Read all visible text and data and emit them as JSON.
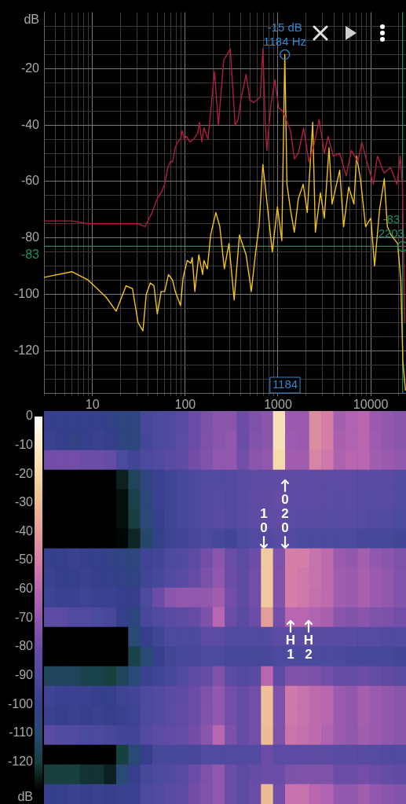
{
  "chart_data": [
    {
      "type": "line",
      "log": "x",
      "grid": true,
      "ylabel": "dB",
      "xlim": [
        3,
        24000
      ],
      "xticks": [
        {
          "value": 3,
          "label": null
        },
        {
          "value": 4,
          "label": null
        },
        {
          "value": 5,
          "label": null
        },
        {
          "value": 6,
          "label": null
        },
        {
          "value": 7,
          "label": null
        },
        {
          "value": 8,
          "label": null
        },
        {
          "value": 9,
          "label": null
        },
        10,
        {
          "value": 20,
          "label": null
        },
        {
          "value": 30,
          "label": null
        },
        {
          "value": 40,
          "label": null
        },
        {
          "value": 50,
          "label": null
        },
        {
          "value": 60,
          "label": null
        },
        {
          "value": 70,
          "label": null
        },
        {
          "value": 80,
          "label": null
        },
        {
          "value": 90,
          "label": null
        },
        100,
        {
          "value": 200,
          "label": null
        },
        {
          "value": 300,
          "label": null
        },
        {
          "value": 400,
          "label": null
        },
        {
          "value": 500,
          "label": null
        },
        {
          "value": 600,
          "label": null
        },
        {
          "value": 700,
          "label": null
        },
        {
          "value": 800,
          "label": null
        },
        {
          "value": 900,
          "label": null
        },
        1000,
        {
          "value": 2000,
          "label": null
        },
        {
          "value": 3000,
          "label": null
        },
        {
          "value": 4000,
          "label": null
        },
        {
          "value": 5000,
          "label": null
        },
        {
          "value": 6000,
          "label": null
        },
        {
          "value": 7000,
          "label": null
        },
        {
          "value": 8000,
          "label": null
        },
        {
          "value": 9000,
          "label": null
        },
        10000,
        {
          "value": 20000,
          "label": null
        }
      ],
      "ylim": [
        -135,
        0
      ],
      "yticks": [
        {
          "value": -5,
          "label": null
        },
        {
          "value": -10,
          "label": null
        },
        {
          "value": -15,
          "label": null
        },
        -20,
        {
          "value": -25,
          "label": null
        },
        {
          "value": -30,
          "label": null
        },
        {
          "value": -35,
          "label": null
        },
        -40,
        {
          "value": -45,
          "label": null
        },
        {
          "value": -50,
          "label": null
        },
        {
          "value": -55,
          "label": null
        },
        -60,
        {
          "value": -65,
          "label": null
        },
        {
          "value": -70,
          "label": null
        },
        {
          "value": -75,
          "label": null
        },
        -80,
        {
          "value": -85,
          "label": null
        },
        {
          "value": -90,
          "label": null
        },
        {
          "value": -95,
          "label": null
        },
        -100,
        {
          "value": -105,
          "label": null
        },
        {
          "value": -110,
          "label": null
        },
        {
          "value": -115,
          "label": null
        },
        -120,
        {
          "value": -125,
          "label": null
        },
        {
          "value": -130,
          "label": null
        }
      ],
      "series": [
        {
          "color": "#b01c40",
          "x": [
            3,
            6,
            9,
            15,
            23,
            31,
            37,
            41,
            44,
            50,
            55,
            60,
            65,
            69,
            73,
            78,
            83,
            89,
            93,
            98,
            103,
            112,
            123,
            136,
            142,
            151,
            159,
            176,
            207,
            228,
            260,
            306,
            345,
            372,
            398,
            453,
            497,
            548,
            645,
            687,
            733,
            759,
            837,
            925,
            1020,
            1125,
            1365,
            1500,
            1660,
            1890,
            2150,
            2450,
            2780,
            3160,
            3470,
            3950,
            4630,
            5440,
            6190,
            7270,
            8000,
            9090,
            10700,
            11800,
            13900,
            16300,
            19200,
            20800,
            21900,
            23300
          ],
          "values": [
            -74,
            -74,
            -75,
            -75,
            -75,
            -75,
            -76,
            -73,
            -71,
            -66,
            -64,
            -61,
            -55,
            -53,
            -53,
            -48,
            -46,
            -45,
            -42,
            -45,
            -44,
            -46,
            -45,
            -43,
            -39,
            -46,
            -41,
            -45,
            -21,
            -40,
            -17,
            -13,
            -40,
            -38,
            -31,
            -22,
            -31,
            -32,
            -30,
            -13,
            -41,
            -49,
            -33,
            -24,
            -34,
            -35,
            -42,
            -52,
            -50,
            -41,
            -53,
            -47,
            -38,
            -50,
            -44,
            -51,
            -50,
            -58,
            -49,
            -53,
            -46,
            -53,
            -61,
            -51,
            -57,
            -55,
            -61,
            -51,
            -61,
            -110
          ]
        },
        {
          "color": "#f2c21a",
          "x": [
            3,
            6,
            9,
            14,
            18,
            23,
            27,
            31,
            35,
            38,
            42,
            46,
            50,
            55,
            60,
            66,
            73,
            78,
            89,
            95,
            105,
            115,
            119,
            127,
            140,
            154,
            159,
            173,
            188,
            214,
            236,
            264,
            296,
            337,
            384,
            453,
            516,
            570,
            624,
            687,
            759,
            868,
            987,
            1100,
            1184,
            1250,
            1365,
            1500,
            1660,
            1870,
            2070,
            2368,
            2530,
            2870,
            3160,
            3552,
            3830,
            4210,
            4630,
            5100,
            5790,
            6590,
            7030,
            7740,
            8800,
            10030,
            11000,
            12450,
            14000,
            15100,
            16600,
            19500,
            21100,
            22200,
            23700
          ],
          "values": [
            -94,
            -92,
            -95,
            -101,
            -106,
            -97,
            -98,
            -110,
            -113,
            -100,
            -96,
            -97,
            -107,
            -99,
            -99,
            -93,
            -95,
            -99,
            -104,
            -94,
            -88,
            -89,
            -87,
            -99,
            -86,
            -93,
            -88,
            -91,
            -79,
            -71,
            -76,
            -91,
            -82,
            -102,
            -79,
            -86,
            -99,
            -86,
            -76,
            -54,
            -67,
            -85,
            -69,
            -81,
            -15,
            -61,
            -70,
            -78,
            -66,
            -61,
            -71,
            -39,
            -78,
            -64,
            -73,
            -48,
            -68,
            -62,
            -56,
            -76,
            -62,
            -68,
            -51,
            -59,
            -76,
            -73,
            -90,
            -70,
            -59,
            -76,
            -79,
            -82,
            -95,
            -124,
            -134
          ]
        }
      ],
      "ref_lines": [
        {
          "axis": "y",
          "value": -83,
          "label": "-83",
          "color": "#1f8f63"
        },
        {
          "axis": "x",
          "value": 22030,
          "color": "#1f8f63"
        }
      ],
      "annotations": [
        {
          "text": "-15 dB\n1184 Hz",
          "x": 1184,
          "y": -15
        },
        "1184",
        {
          "text": "-83\n2203",
          "x": 22030,
          "y": -83
        }
      ]
    },
    {
      "type": "heatmap",
      "tick_labels": false,
      "clim": [
        -130,
        0
      ],
      "cticks": [
        0,
        -10,
        -20,
        -30,
        -40,
        -50,
        -60,
        -70,
        -80,
        -90,
        -100,
        -110,
        -120
      ],
      "clabel": "dB",
      "categories": [
        null,
        null,
        null,
        null,
        null,
        null,
        null,
        null,
        null,
        null,
        null,
        null,
        null,
        null,
        null,
        null,
        null,
        null,
        null,
        null,
        null,
        null,
        null,
        null,
        null,
        null,
        null,
        null,
        null,
        null
      ],
      "y_categories": [
        null,
        null,
        null,
        null,
        null,
        null,
        null,
        null,
        null,
        null,
        null,
        null,
        null,
        null,
        null,
        null,
        null,
        null,
        null,
        null
      ],
      "cells": [
        [
          -100,
          -100,
          -100,
          -100,
          -100,
          -102,
          -105,
          -105,
          -92,
          -90,
          -88,
          -86,
          -80,
          -76,
          -72,
          -72,
          -80,
          -75,
          -72,
          -15,
          -68,
          -68,
          -45,
          -50,
          -65,
          -62,
          -60,
          -68,
          -70,
          -72
        ],
        [
          -98,
          -100,
          -102,
          -100,
          -98,
          -100,
          -104,
          -106,
          -93,
          -90,
          -88,
          -85,
          -80,
          -75,
          -72,
          -70,
          -80,
          -74,
          -72,
          -15,
          -67,
          -68,
          -45,
          -50,
          -64,
          -62,
          -60,
          -67,
          -70,
          -72
        ],
        [
          -78,
          -78,
          -78,
          -80,
          -80,
          -82,
          -90,
          -95,
          -90,
          -88,
          -86,
          -84,
          -78,
          -74,
          -70,
          -70,
          -78,
          -72,
          -70,
          -18,
          -66,
          -66,
          -48,
          -52,
          -63,
          -60,
          -60,
          -66,
          -68,
          -70
        ],
        [
          -130,
          -130,
          -130,
          -130,
          -130,
          -130,
          -125,
          -115,
          -105,
          -98,
          -95,
          -92,
          -90,
          -88,
          -88,
          -88,
          -86,
          -85,
          -85,
          -84,
          -84,
          -85,
          -85,
          -85,
          -85,
          -85,
          -86,
          -86,
          -86,
          -88
        ],
        [
          -130,
          -130,
          -130,
          -130,
          -130,
          -130,
          -128,
          -118,
          -106,
          -98,
          -95,
          -92,
          -90,
          -88,
          -87,
          -88,
          -86,
          -84,
          -84,
          -82,
          -84,
          -85,
          -85,
          -85,
          -86,
          -85,
          -86,
          -87,
          -86,
          -88
        ],
        [
          -130,
          -130,
          -130,
          -130,
          -130,
          -130,
          -128,
          -120,
          -108,
          -100,
          -95,
          -92,
          -90,
          -88,
          -86,
          -88,
          -86,
          -84,
          -84,
          -83,
          -85,
          -86,
          -86,
          -86,
          -87,
          -86,
          -87,
          -88,
          -88,
          -90
        ],
        [
          -130,
          -130,
          -130,
          -130,
          -130,
          -130,
          -129,
          -124,
          -112,
          -102,
          -96,
          -94,
          -92,
          -90,
          -92,
          -94,
          -90,
          -88,
          -88,
          -86,
          -88,
          -90,
          -90,
          -90,
          -90,
          -90,
          -92,
          -92,
          -92,
          -94
        ],
        [
          -100,
          -100,
          -98,
          -100,
          -100,
          -102,
          -104,
          -106,
          -96,
          -94,
          -90,
          -88,
          -85,
          -78,
          -72,
          -80,
          -85,
          -80,
          -25,
          -75,
          -50,
          -50,
          -55,
          -58,
          -68,
          -70,
          -65,
          -70,
          -72,
          -75
        ],
        [
          -98,
          -100,
          -100,
          -98,
          -100,
          -100,
          -102,
          -104,
          -95,
          -92,
          -88,
          -86,
          -82,
          -76,
          -70,
          -80,
          -84,
          -78,
          -25,
          -74,
          -50,
          -52,
          -55,
          -58,
          -66,
          -68,
          -64,
          -68,
          -70,
          -74
        ],
        [
          -96,
          -98,
          -98,
          -96,
          -98,
          -98,
          -100,
          -100,
          -90,
          -80,
          -72,
          -70,
          -70,
          -70,
          -66,
          -78,
          -84,
          -78,
          -25,
          -74,
          -50,
          -52,
          -56,
          -58,
          -66,
          -68,
          -64,
          -68,
          -70,
          -74
        ],
        [
          -85,
          -85,
          -88,
          -88,
          -90,
          -92,
          -100,
          -105,
          -92,
          -88,
          -86,
          -84,
          -82,
          -76,
          -60,
          -80,
          -86,
          -80,
          -40,
          -78,
          -60,
          -60,
          -62,
          -64,
          -72,
          -74,
          -72,
          -75,
          -76,
          -78
        ],
        [
          -130,
          -130,
          -130,
          -130,
          -130,
          -130,
          -130,
          -110,
          -100,
          -95,
          -90,
          -90,
          -90,
          -85,
          -85,
          -88,
          -88,
          -88,
          -88,
          -85,
          -85,
          -85,
          -86,
          -86,
          -86,
          -86,
          -87,
          -87,
          -88,
          -88
        ],
        [
          -130,
          -130,
          -130,
          -130,
          -130,
          -130,
          -130,
          -118,
          -110,
          -100,
          -94,
          -92,
          -92,
          -90,
          -90,
          -92,
          -92,
          -92,
          -92,
          -90,
          -90,
          -90,
          -90,
          -90,
          -90,
          -92,
          -92,
          -92,
          -92,
          -94
        ],
        [
          -115,
          -115,
          -115,
          -118,
          -118,
          -120,
          -115,
          -110,
          -98,
          -95,
          -92,
          -88,
          -85,
          -82,
          -75,
          -85,
          -88,
          -86,
          -60,
          -85,
          -75,
          -75,
          -76,
          -78,
          -82,
          -82,
          -80,
          -82,
          -84,
          -86
        ],
        [
          -96,
          -98,
          -98,
          -98,
          -100,
          -100,
          -96,
          -95,
          -90,
          -88,
          -86,
          -84,
          -80,
          -75,
          -70,
          -78,
          -82,
          -78,
          -28,
          -75,
          -52,
          -55,
          -58,
          -60,
          -68,
          -70,
          -65,
          -68,
          -70,
          -72
        ],
        [
          -98,
          -100,
          -98,
          -100,
          -98,
          -100,
          -98,
          -96,
          -90,
          -88,
          -85,
          -83,
          -80,
          -74,
          -70,
          -78,
          -82,
          -78,
          -28,
          -75,
          -52,
          -55,
          -58,
          -60,
          -68,
          -70,
          -65,
          -68,
          -70,
          -72
        ],
        [
          -85,
          -88,
          -88,
          -90,
          -90,
          -92,
          -94,
          -95,
          -88,
          -85,
          -83,
          -82,
          -78,
          -72,
          -60,
          -76,
          -82,
          -78,
          -30,
          -75,
          -54,
          -56,
          -58,
          -62,
          -68,
          -70,
          -66,
          -68,
          -70,
          -72
        ],
        [
          -130,
          -130,
          -130,
          -130,
          -130,
          -130,
          -120,
          -110,
          -100,
          -92,
          -92,
          -92,
          -92,
          -88,
          -88,
          -88,
          -88,
          -88,
          -80,
          -85,
          -85,
          -85,
          -85,
          -85,
          -86,
          -86,
          -86,
          -87,
          -88,
          -88
        ],
        [
          -120,
          -120,
          -120,
          -122,
          -122,
          -125,
          -110,
          -100,
          -92,
          -90,
          -88,
          -86,
          -80,
          -75,
          -70,
          -80,
          -85,
          -82,
          -80,
          -80,
          -76,
          -75,
          -75,
          -75,
          -80,
          -80,
          -78,
          -80,
          -82,
          -84
        ],
        [
          -100,
          -100,
          -98,
          -100,
          -98,
          -100,
          -98,
          -98,
          -90,
          -88,
          -86,
          -84,
          -78,
          -74,
          -70,
          -80,
          -85,
          -80,
          -30,
          -78,
          -55,
          -55,
          -60,
          -62,
          -70,
          -70,
          -66,
          -70,
          -72,
          -74
        ]
      ],
      "annotations": [
        "10",
        "020",
        "H1",
        "H2"
      ]
    }
  ]
}
